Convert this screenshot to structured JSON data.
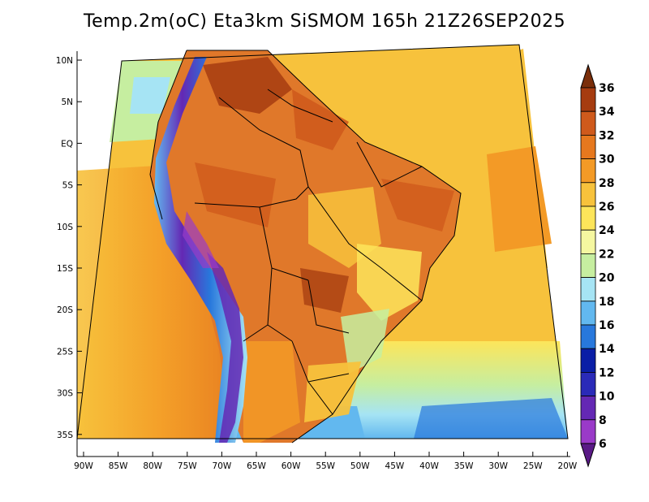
{
  "title": "Temp.2m(oC) Eta3km SiSMOM 165h 21Z26SEP2025",
  "lat_labels": [
    "10N",
    "5N",
    "EQ",
    "5S",
    "10S",
    "15S",
    "20S",
    "25S",
    "30S",
    "35S"
  ],
  "lon_labels": [
    "90W",
    "85W",
    "80W",
    "75W",
    "70W",
    "65W",
    "60W",
    "55W",
    "50W",
    "45W",
    "40W",
    "35W",
    "30W",
    "25W",
    "20W"
  ],
  "colorbar": {
    "labels": [
      "36",
      "34",
      "32",
      "30",
      "28",
      "26",
      "24",
      "22",
      "20",
      "18",
      "16",
      "14",
      "12",
      "10",
      "8",
      "6"
    ],
    "colors": [
      "#7a2e0a",
      "#a63c10",
      "#cf5a1c",
      "#e6781e",
      "#f39a26",
      "#f7c23c",
      "#fde55a",
      "#f5f7a0",
      "#c6eea0",
      "#a6e4f4",
      "#62b8ef",
      "#2878dc",
      "#0a1ea6",
      "#2a2ab8",
      "#6428b4",
      "#9a3ac8",
      "#5a1a86"
    ]
  },
  "map": {
    "land_color": "#e0782a",
    "ocean_warm": "#f3aa30",
    "ocean_mid": "#fbd24a",
    "ocean_cool": "#fde55a",
    "andes_cold": "#6a2ab8"
  }
}
